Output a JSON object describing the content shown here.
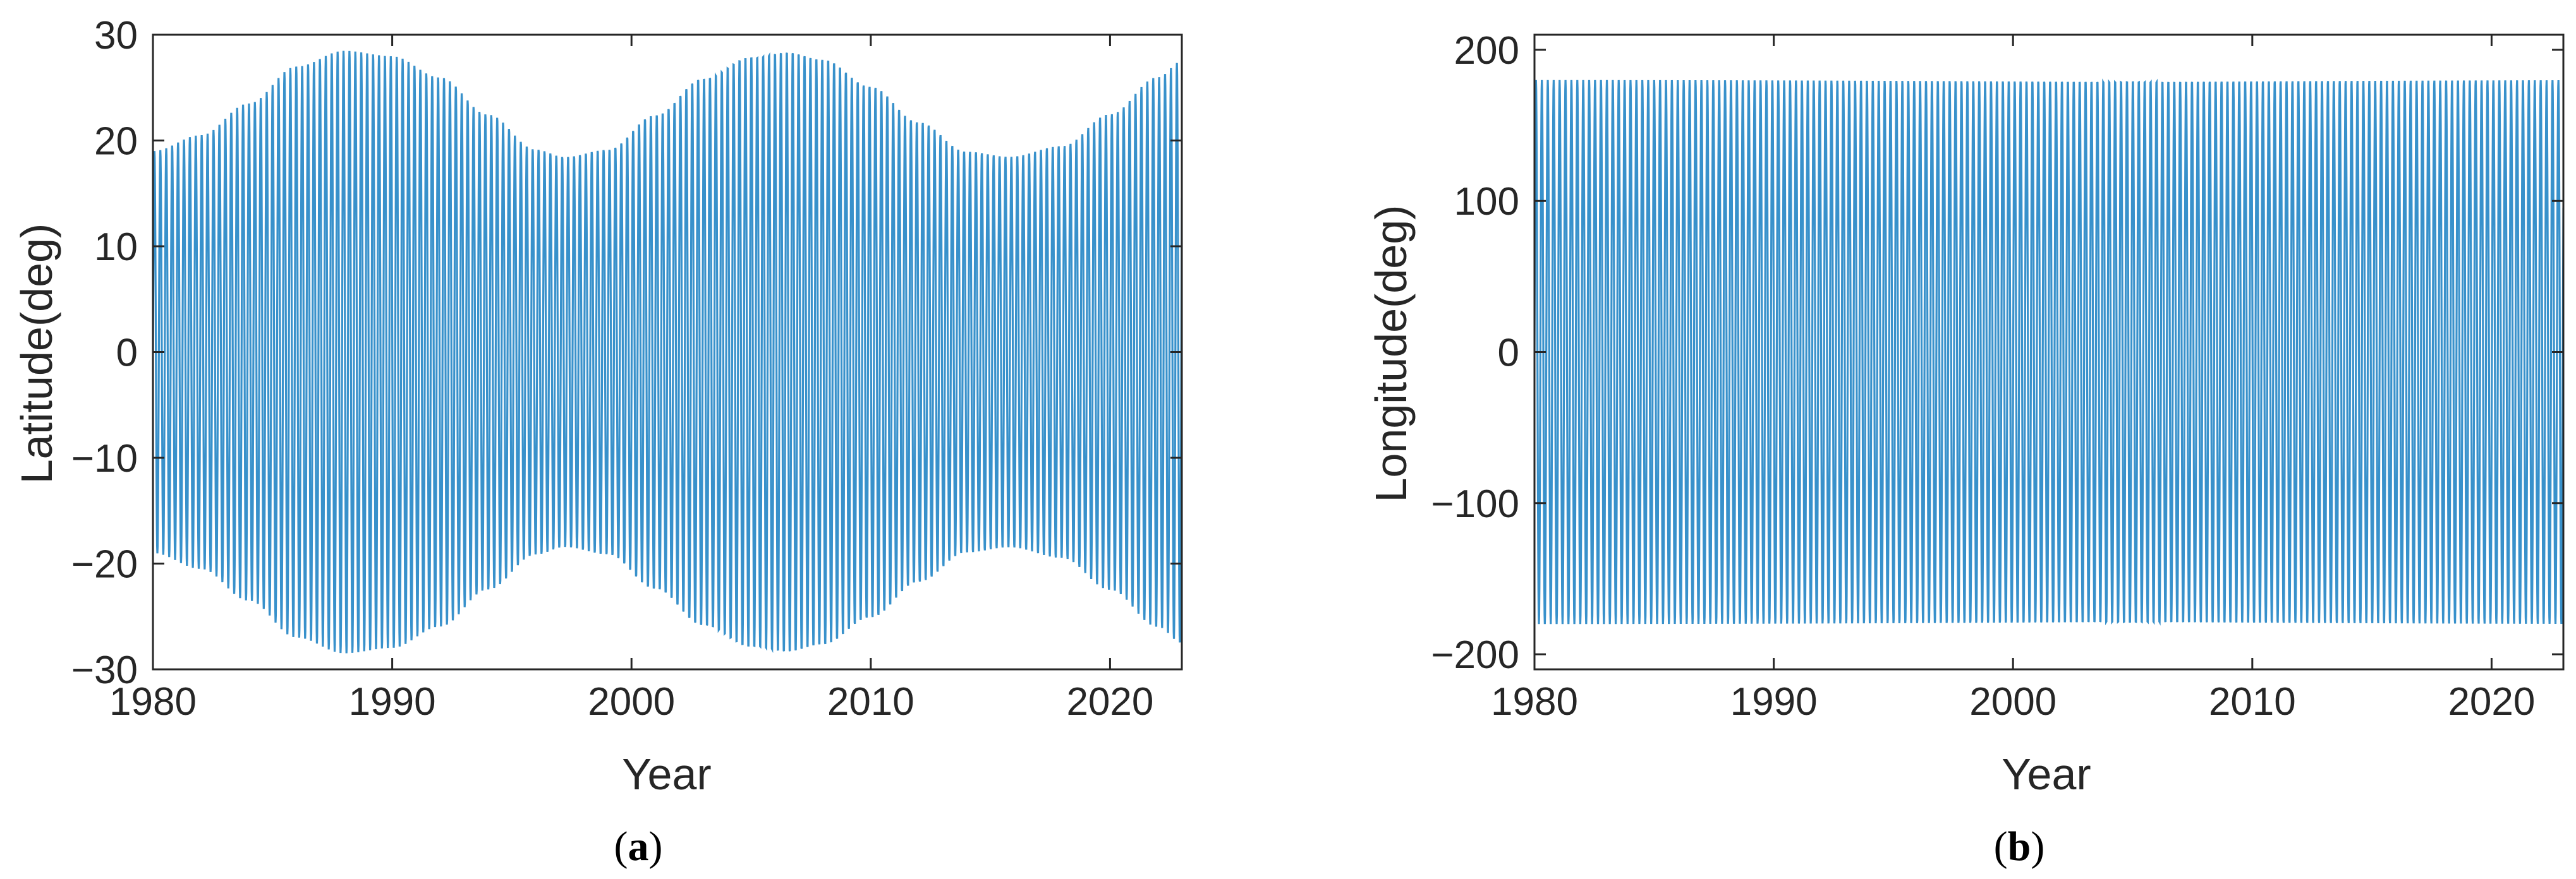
{
  "chart_data": [
    {
      "type": "line",
      "panel": "a",
      "caption_open": "(",
      "caption_letter": "a",
      "caption_close": ")",
      "xlabel": "Year",
      "ylabel": "Latitude(deg)",
      "xlim": [
        1980,
        2023
      ],
      "ylim": [
        -30,
        30
      ],
      "xticks": [
        "1980",
        "1990",
        "2000",
        "2010",
        "2020"
      ],
      "yticks": [
        "−30",
        "−20",
        "−10",
        "0",
        "10",
        "20",
        "30"
      ],
      "color": "#0072BD",
      "oscillation_period_years": 0.247,
      "envelope": {
        "x": [
          1980,
          1982,
          1984,
          1986,
          1988,
          1990,
          1992,
          1994,
          1996,
          1997.2,
          1999,
          2001,
          2003,
          2005,
          2006.5,
          2008,
          2010,
          2012,
          2014,
          2015.8,
          2018,
          2020,
          2022,
          2023
        ],
        "amplitude": [
          19,
          20.5,
          23.5,
          27,
          28.5,
          28,
          26,
          22.5,
          19.2,
          18.5,
          19.2,
          22.5,
          26,
          28,
          28.5,
          27.8,
          25.2,
          21.8,
          19,
          18.5,
          19.5,
          22.5,
          26,
          27.5
        ]
      }
    },
    {
      "type": "line",
      "panel": "b",
      "caption_open": "(",
      "caption_letter": "b",
      "caption_close": ")",
      "xlabel": "Year",
      "ylabel": "Longitude(deg)",
      "xlim": [
        1980,
        2023
      ],
      "ylim": [
        -210,
        210
      ],
      "xticks": [
        "1980",
        "1990",
        "2000",
        "2010",
        "2020"
      ],
      "yticks": [
        "−200",
        "−100",
        "0",
        "100",
        "200"
      ],
      "color": "#0072BD",
      "oscillation_period_years": 0.247,
      "envelope": {
        "x": [
          1980,
          2023
        ],
        "amplitude": [
          180,
          180
        ]
      }
    }
  ]
}
